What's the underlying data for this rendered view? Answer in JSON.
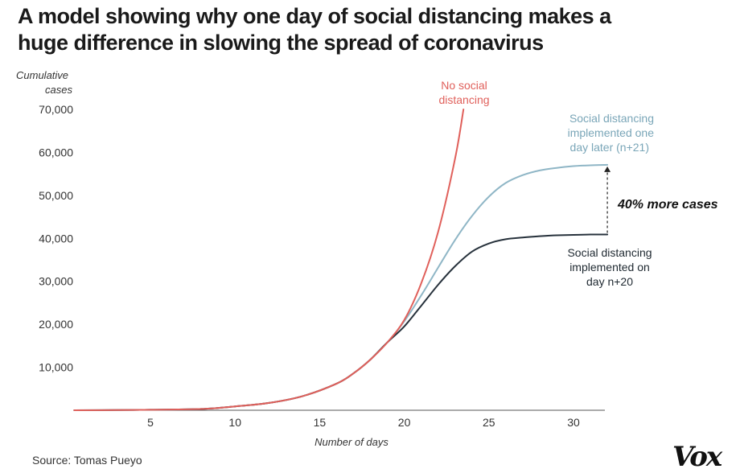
{
  "title_lines": [
    "A model showing why one day of social distancing makes a",
    "huge difference in slowing the spread of coronavirus"
  ],
  "source": "Source: Tomas Pueyo",
  "logo_text": "Vox",
  "chart_data": {
    "type": "line",
    "ylabel_lines": [
      "Cumulative",
      "cases"
    ],
    "xlabel": "Number of days",
    "xlim": [
      0.5,
      32
    ],
    "ylim": [
      0,
      72000
    ],
    "x_ticks": [
      5,
      10,
      15,
      20,
      25,
      30
    ],
    "y_ticks": [
      10000,
      20000,
      30000,
      40000,
      50000,
      60000,
      70000
    ],
    "x_tick_labels": [
      "5",
      "10",
      "15",
      "20",
      "25",
      "30"
    ],
    "y_tick_labels": [
      "10,000",
      "20,000",
      "30,000",
      "40,000",
      "50,000",
      "60,000",
      "70,000"
    ],
    "grid": false,
    "series": [
      {
        "name_lines": [
          "Social distancing",
          "implemented one",
          "day later (n+21)"
        ],
        "color": "#8fb6c6",
        "x": [
          0.5,
          4,
          8,
          10,
          12,
          14,
          16,
          17,
          18,
          19,
          20,
          21,
          22,
          23,
          24,
          25,
          26,
          27,
          28,
          29,
          30,
          31,
          32
        ],
        "y": [
          0,
          80,
          300,
          900,
          1700,
          3300,
          6200,
          8600,
          11800,
          15800,
          20700,
          26700,
          33200,
          39600,
          45200,
          49700,
          52900,
          54700,
          55800,
          56400,
          56800,
          57000,
          57100
        ]
      },
      {
        "name_lines": [
          "Social distancing",
          "implemented on",
          "day n+20"
        ],
        "color": "#27323c",
        "x": [
          0.5,
          4,
          8,
          10,
          12,
          14,
          16,
          17,
          18,
          19,
          20,
          21,
          22,
          23,
          24,
          25,
          26,
          27,
          28,
          29,
          30,
          31,
          32
        ],
        "y": [
          0,
          80,
          300,
          900,
          1700,
          3300,
          6200,
          8600,
          11800,
          15800,
          19500,
          24300,
          29200,
          33500,
          36900,
          38800,
          39800,
          40200,
          40500,
          40700,
          40800,
          40900,
          40900
        ]
      },
      {
        "name_lines": [
          "No social",
          "distancing"
        ],
        "color": "#e0605b",
        "x": [
          0.5,
          4,
          8,
          10,
          12,
          14,
          16,
          17,
          18,
          19,
          20,
          21,
          22,
          23,
          23.5
        ],
        "y": [
          0,
          80,
          300,
          900,
          1700,
          3300,
          6200,
          8600,
          11800,
          15800,
          21000,
          29500,
          41500,
          58500,
          70000
        ]
      }
    ],
    "annotation": "40% more cases"
  }
}
